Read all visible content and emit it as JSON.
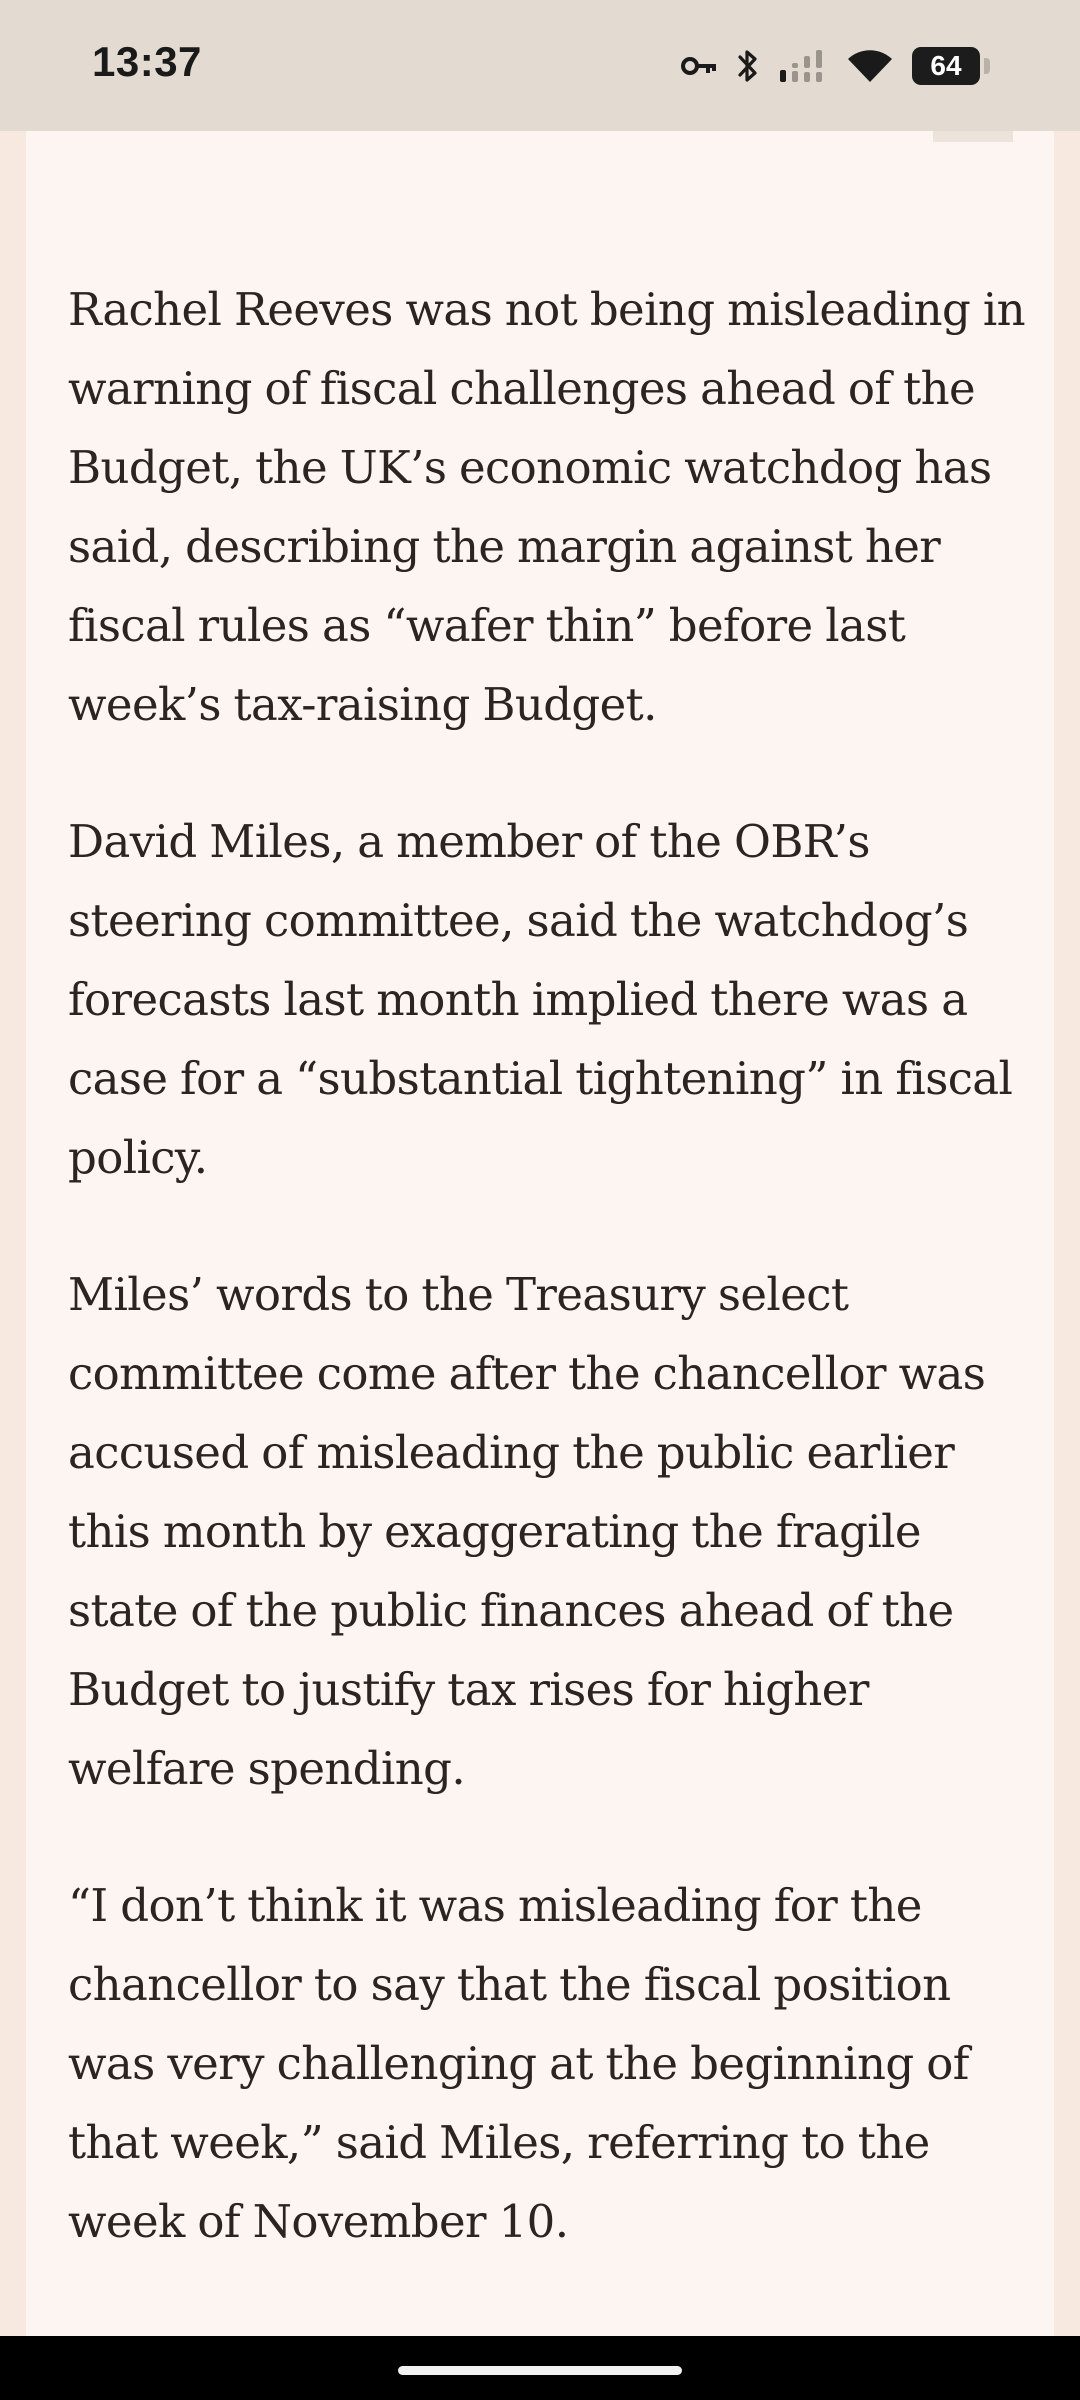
{
  "status_bar": {
    "time": "13:37",
    "battery_level": "64",
    "icons": [
      "vpn-key-icon",
      "bluetooth-icon",
      "cellular-signal-icon",
      "wifi-icon",
      "battery-icon"
    ]
  },
  "article": {
    "paragraphs": [
      "Rachel Reeves was not being misleading in warning of fiscal challenges ahead of the Budget, the UK’s economic watchdog has said, describing the margin against her fiscal rules as “wafer thin” before last week’s tax-raising Budget.",
      "David Miles, a member of the OBR’s steering committee, said the watchdog’s forecasts last month implied there was a case for a “substantial tightening” in fiscal policy.",
      "Miles’ words to the Treasury select committee come after the chancellor was accused of misleading the public earlier this month by exaggerating the fragile state of the public finances ahead of the Budget to justify tax rises for higher welfare spending.",
      "“I don’t think it was misleading for the chancellor to say that the fiscal position was very challenging at the beginning of that week,” said Miles, referring to the week of November 10."
    ]
  },
  "colors": {
    "status_bar_bg": "#e3dbd1",
    "page_bg": "#fdf5f1",
    "page_edge": "#f7e9e0",
    "text": "#2b2420",
    "nav_bar_bg": "#000000"
  }
}
